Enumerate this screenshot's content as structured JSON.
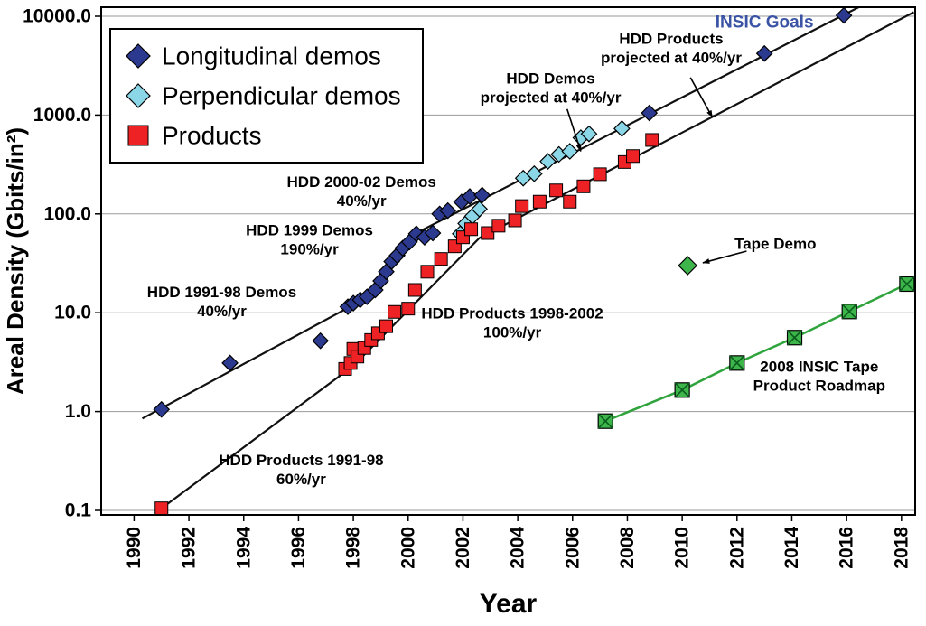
{
  "chart_data": {
    "type": "scatter",
    "title": "",
    "xlabel": "Year",
    "ylabel": "Areal Density (Gbits/in²)",
    "y_scale": "log",
    "xlim": [
      1988.8,
      2018.5
    ],
    "ylim": [
      0.08,
      12000
    ],
    "x_ticks": [
      1990,
      1992,
      1994,
      1996,
      1998,
      2000,
      2002,
      2004,
      2006,
      2008,
      2010,
      2012,
      2014,
      2016,
      2018
    ],
    "y_ticks": [
      0.1,
      1.0,
      10.0,
      100.0,
      1000.0,
      10000.0
    ],
    "y_tick_labels": [
      "0.1",
      "1.0",
      "10.0",
      "100.0",
      "1000.0",
      "10000.0"
    ],
    "grid": "horizontal",
    "legend": {
      "position": "top-left",
      "entries": [
        {
          "label": "Longitudinal demos",
          "marker": "diamond",
          "color": "#2B3A8F"
        },
        {
          "label": "Perpendicular demos",
          "marker": "diamond",
          "color": "#8BD7E8"
        },
        {
          "label": "Products",
          "marker": "square",
          "color": "#EE2224"
        }
      ]
    },
    "series": [
      {
        "name": "Longitudinal demos",
        "marker": "diamond",
        "color": "#2B3A8F",
        "size": 8.5,
        "connect": false,
        "points": [
          [
            1991,
            1.05
          ],
          [
            1993.5,
            3.1
          ],
          [
            1996.8,
            5.2
          ],
          [
            1997.8,
            11.5
          ],
          [
            1998.0,
            12.5
          ],
          [
            1998.25,
            13.5
          ],
          [
            1998.5,
            14.5
          ],
          [
            1998.8,
            17
          ],
          [
            1999.0,
            21
          ],
          [
            1999.2,
            26
          ],
          [
            1999.4,
            33
          ],
          [
            1999.6,
            38
          ],
          [
            1999.8,
            45
          ],
          [
            2000.05,
            52
          ],
          [
            2000.3,
            63
          ],
          [
            2000.6,
            58
          ],
          [
            2000.9,
            64
          ],
          [
            2001.15,
            100
          ],
          [
            2001.45,
            108
          ],
          [
            2001.95,
            132
          ],
          [
            2002.25,
            150
          ],
          [
            2002.7,
            155
          ],
          [
            2008.8,
            1050
          ],
          [
            2013.0,
            4200
          ],
          [
            2015.9,
            10200
          ]
        ]
      },
      {
        "name": "Perpendicular demos",
        "marker": "diamond",
        "color": "#8BD7E8",
        "size": 8.5,
        "connect": false,
        "points": [
          [
            2001.9,
            63
          ],
          [
            2002.1,
            80
          ],
          [
            2002.35,
            95
          ],
          [
            2002.6,
            112
          ],
          [
            2004.2,
            230
          ],
          [
            2004.6,
            255
          ],
          [
            2005.1,
            340
          ],
          [
            2005.5,
            400
          ],
          [
            2005.9,
            430
          ],
          [
            2006.3,
            590
          ],
          [
            2006.6,
            645
          ],
          [
            2007.8,
            730
          ]
        ]
      },
      {
        "name": "Products",
        "marker": "square",
        "color": "#EE2224",
        "size": 7,
        "connect": false,
        "points": [
          [
            1991,
            0.105
          ],
          [
            1997.7,
            2.7
          ],
          [
            1997.9,
            3.1
          ],
          [
            1998.0,
            4.3
          ],
          [
            1998.15,
            3.6
          ],
          [
            1998.4,
            4.4
          ],
          [
            1998.65,
            5.3
          ],
          [
            1998.9,
            6.2
          ],
          [
            1999.2,
            7.3
          ],
          [
            1999.5,
            10.2
          ],
          [
            2000.0,
            11
          ],
          [
            2000.25,
            17
          ],
          [
            2000.7,
            26
          ],
          [
            2001.2,
            35
          ],
          [
            2001.7,
            47
          ],
          [
            2002.0,
            58
          ],
          [
            2002.3,
            70
          ],
          [
            2002.9,
            64
          ],
          [
            2003.3,
            76
          ],
          [
            2003.9,
            86
          ],
          [
            2004.15,
            120
          ],
          [
            2004.8,
            133
          ],
          [
            2005.4,
            173
          ],
          [
            2005.9,
            133
          ],
          [
            2006.4,
            190
          ],
          [
            2007.0,
            252
          ],
          [
            2007.9,
            335
          ],
          [
            2008.2,
            385
          ],
          [
            2008.9,
            560
          ]
        ]
      },
      {
        "name": "Tape Demo",
        "marker": "diamond",
        "color": "#3DB54A",
        "size": 10,
        "connect": false,
        "points": [
          [
            2010.2,
            30
          ]
        ]
      },
      {
        "name": "2008 INSIC Tape Product Roadmap",
        "marker": "square-x",
        "color": "#3DB54A",
        "size": 8,
        "connect": true,
        "line_color": "#2FA43C",
        "points": [
          [
            2007.2,
            0.8
          ],
          [
            2010.0,
            1.65
          ],
          [
            2012.0,
            3.1
          ],
          [
            2014.1,
            5.6
          ],
          [
            2016.1,
            10.3
          ],
          [
            2018.2,
            19.5
          ]
        ]
      }
    ],
    "trend_lines": [
      {
        "name": "hdd-demos-trend",
        "color": "#111111",
        "points": [
          [
            1990.3,
            0.85
          ],
          [
            1998.35,
            13.5
          ],
          [
            2000.2,
            62
          ],
          [
            2016.6,
            13000
          ]
        ]
      },
      {
        "name": "hdd-products-trend",
        "color": "#111111",
        "points": [
          [
            1990.9,
            0.1
          ],
          [
            1998.0,
            2.9
          ],
          [
            2002.6,
            57
          ],
          [
            2018.45,
            11000
          ]
        ]
      }
    ],
    "annotations": [
      {
        "id": "demos-2000-02",
        "lines": [
          "HDD 2000-02 Demos",
          "40%/yr"
        ],
        "x": 1998.3,
        "y": 170,
        "color": "#000000",
        "size": 17
      },
      {
        "id": "demos-1999",
        "lines": [
          "HDD 1999 Demos",
          "190%/yr"
        ],
        "x": 1996.4,
        "y": 55,
        "color": "#000000",
        "size": 17
      },
      {
        "id": "demos-1991-98",
        "lines": [
          "HDD 1991-98 Demos",
          "40%/yr"
        ],
        "x": 1993.2,
        "y": 13,
        "color": "#000000",
        "size": 17
      },
      {
        "id": "products-1998-2002",
        "lines": [
          "HDD Products 1998-2002",
          "100%/yr"
        ],
        "x": 2003.8,
        "y": 8,
        "color": "#000000",
        "size": 17
      },
      {
        "id": "products-1991-98",
        "lines": [
          "HDD Products 1991-98",
          "60%/yr"
        ],
        "x": 1996.1,
        "y": 0.26,
        "color": "#000000",
        "size": 17
      },
      {
        "id": "demos-projected",
        "lines": [
          "HDD Demos",
          "projected at 40%/yr"
        ],
        "x": 2005.2,
        "y": 1900,
        "color": "#000000",
        "size": 17,
        "arrow": {
          "x1": 2005.8,
          "y1": 1150,
          "x2": 2006.3,
          "y2": 430
        }
      },
      {
        "id": "products-projected",
        "lines": [
          "HDD Products",
          "projected at 40%/yr"
        ],
        "x": 2009.6,
        "y": 4800,
        "color": "#000000",
        "size": 17,
        "arrow": {
          "x1": 2010.3,
          "y1": 2400,
          "x2": 2011.1,
          "y2": 950
        }
      },
      {
        "id": "insic-goals",
        "lines": [
          "INSIC Goals"
        ],
        "x": 2013.0,
        "y": 8800,
        "color": "#3A53A4",
        "size": 19
      },
      {
        "id": "tape-demo",
        "lines": [
          "Tape Demo"
        ],
        "x": 2013.4,
        "y": 50,
        "color": "#000000",
        "size": 17,
        "arrow": {
          "x1": 2012.35,
          "y1": 42,
          "x2": 2010.75,
          "y2": 32
        }
      },
      {
        "id": "tape-roadmap",
        "lines": [
          "2008 INSIC Tape",
          "Product Roadmap"
        ],
        "x": 2015.0,
        "y": 2.3,
        "color": "#000000",
        "size": 17
      }
    ]
  }
}
